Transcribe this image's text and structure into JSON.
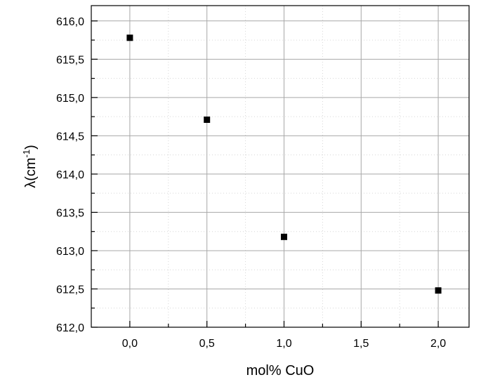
{
  "chart_data": {
    "type": "scatter",
    "title": "",
    "xlabel": "mol% CuO",
    "ylabel": {
      "main": "λ(cm",
      "superscript": "-1",
      "close": ")"
    },
    "xlim": [
      -0.25,
      2.2
    ],
    "ylim": [
      612.0,
      616.2
    ],
    "x_ticks": [
      0.0,
      0.5,
      1.0,
      1.5,
      2.0
    ],
    "x_tick_labels": [
      "0,0",
      "0,5",
      "1,0",
      "1,5",
      "2,0"
    ],
    "y_ticks": [
      612.0,
      612.5,
      613.0,
      613.5,
      614.0,
      614.5,
      615.0,
      615.5,
      616.0
    ],
    "y_tick_labels": [
      "612,0",
      "612,5",
      "613,0",
      "613,5",
      "614,0",
      "614,5",
      "615,0",
      "615,5",
      "616,0"
    ],
    "grid": true,
    "marker": "square",
    "marker_color": "#000000",
    "series": [
      {
        "x": [
          0.0,
          0.5,
          1.0,
          2.0
        ],
        "y": [
          615.78,
          614.71,
          613.18,
          612.48
        ]
      }
    ]
  }
}
